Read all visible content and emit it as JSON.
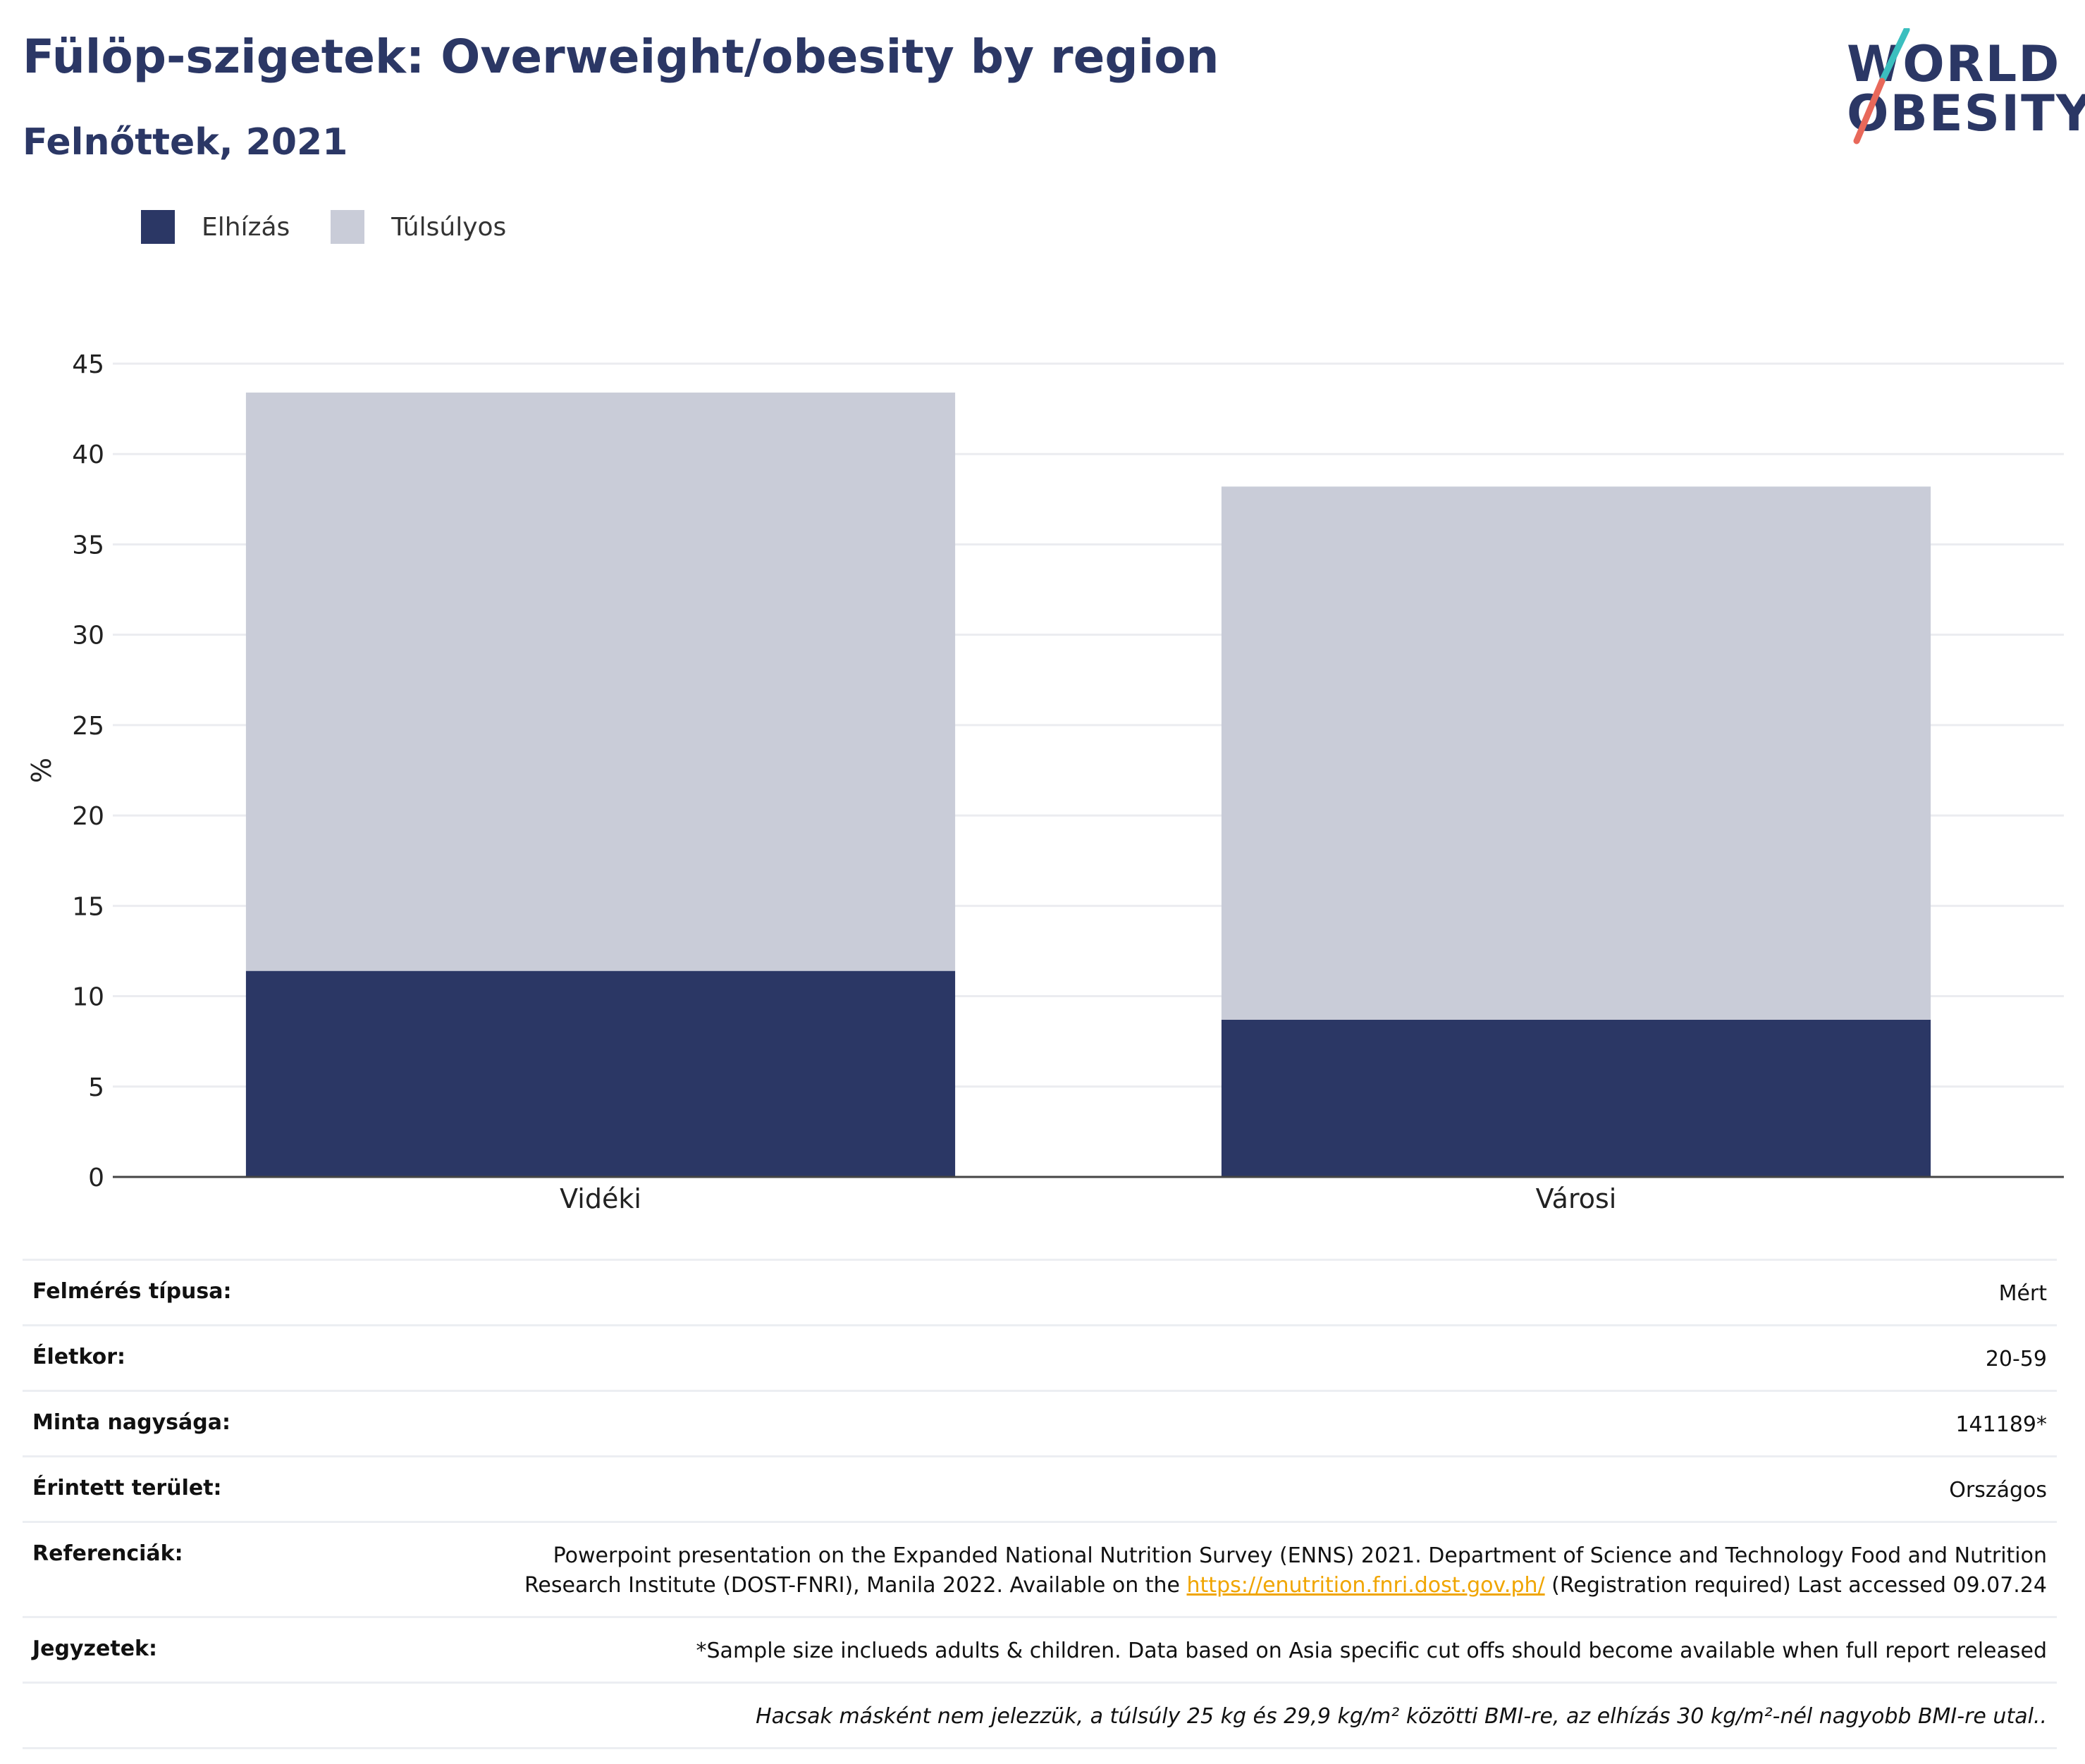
{
  "header": {
    "title": "Fülöp-szigetek: Overweight/obesity by region",
    "subtitle": "Felnőttek, 2021"
  },
  "logo": {
    "line1": "WORLD",
    "line2": "OBESITY",
    "colors": {
      "text": "#2b3765",
      "slash_top": "#3bbfbf",
      "slash_bottom": "#e8685a"
    }
  },
  "legend": [
    {
      "label": "Elhízás",
      "color": "#2b3765"
    },
    {
      "label": "Túlsúlyos",
      "color": "#c9ccd8"
    }
  ],
  "chart_data": {
    "type": "bar",
    "stacked": true,
    "categories": [
      "Vidéki",
      "Városi"
    ],
    "series": [
      {
        "name": "Elhízás",
        "values": [
          11.4,
          8.7
        ],
        "color": "#2b3765"
      },
      {
        "name": "Túlsúlyos",
        "values": [
          32.0,
          29.5
        ],
        "color": "#c9ccd8"
      }
    ],
    "ylabel": "%",
    "ylim": [
      0,
      45
    ],
    "yticks": [
      0,
      5,
      10,
      15,
      20,
      25,
      30,
      35,
      40,
      45
    ],
    "grid": true
  },
  "info": {
    "survey_type": {
      "label": "Felmérés típusa:",
      "value": "Mért"
    },
    "age": {
      "label": "Életkor:",
      "value": "20-59"
    },
    "sample_size": {
      "label": "Minta nagysága:",
      "value": "141189*"
    },
    "area": {
      "label": "Érintett terület:",
      "value": "Országos"
    },
    "references": {
      "label": "Referenciák:",
      "text_before": "Powerpoint presentation on the Expanded National Nutrition Survey (ENNS) 2021. Department of Science and Technology Food and Nutrition Research Institute (DOST-FNRI), Manila 2022. Available on the ",
      "link": "https://enutrition.fnri.dost.gov.ph/",
      "text_after": " (Registration required) Last accessed 09.07.24"
    },
    "notes": {
      "label": "Jegyzetek:",
      "value": "*Sample size inclueds adults & children. Data based on Asia specific cut offs should become available when full report released"
    },
    "footnote": "Hacsak másként nem jelezzük, a túlsúly 25 kg és 29,9 kg/m² közötti BMI-re, az elhízás 30 kg/m²-nél nagyobb BMI-re utal.."
  }
}
